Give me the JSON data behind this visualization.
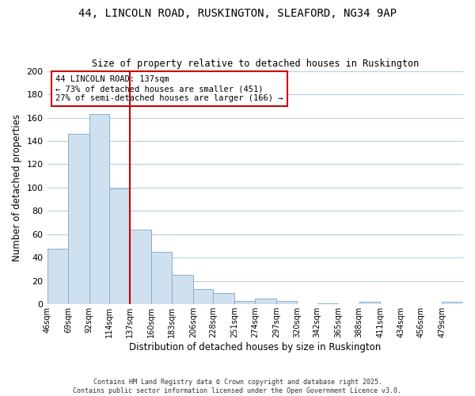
{
  "title_line1": "44, LINCOLN ROAD, RUSKINGTON, SLEAFORD, NG34 9AP",
  "title_line2": "Size of property relative to detached houses in Ruskington",
  "xlabel": "Distribution of detached houses by size in Ruskington",
  "ylabel": "Number of detached properties",
  "bar_color": "#cfe0ef",
  "bar_edge_color": "#8ab0cc",
  "bins": [
    46,
    69,
    92,
    114,
    137,
    160,
    183,
    206,
    228,
    251,
    274,
    297,
    320,
    342,
    365,
    388,
    411,
    434,
    456,
    479,
    502
  ],
  "counts": [
    48,
    146,
    163,
    99,
    64,
    45,
    25,
    13,
    10,
    3,
    5,
    3,
    0,
    1,
    0,
    2,
    0,
    0,
    0,
    2
  ],
  "vline_x": 137,
  "vline_color": "#cc0000",
  "annotation_title": "44 LINCOLN ROAD: 137sqm",
  "annotation_line2": "← 73% of detached houses are smaller (451)",
  "annotation_line3": "27% of semi-detached houses are larger (166) →",
  "ylim": [
    0,
    200
  ],
  "yticks": [
    0,
    20,
    40,
    60,
    80,
    100,
    120,
    140,
    160,
    180,
    200
  ],
  "background_color": "#ffffff",
  "grid_color": "#b8cfe0",
  "footer_line1": "Contains HM Land Registry data © Crown copyright and database right 2025.",
  "footer_line2": "Contains public sector information licensed under the Open Government Licence v3.0."
}
